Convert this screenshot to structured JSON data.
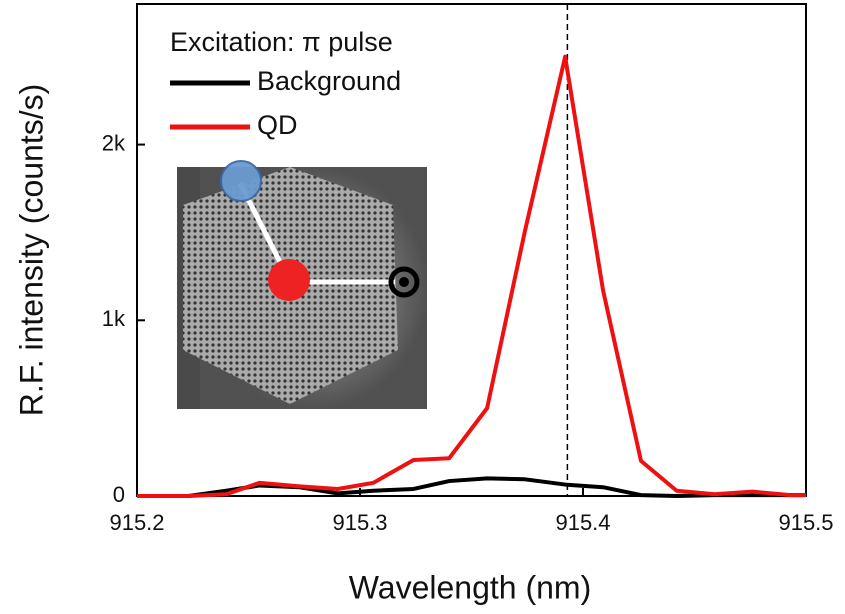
{
  "chart_data": {
    "type": "line",
    "xlabel": "Wavelength (nm)",
    "ylabel": "R.F. intensity (counts/s)",
    "legend_title": "Excitation: π pulse",
    "x": [
      915.2,
      915.223,
      915.24,
      915.255,
      915.273,
      915.29,
      915.306,
      915.324,
      915.34,
      915.357,
      915.374,
      915.392,
      915.409,
      915.426,
      915.442,
      915.459,
      915.476,
      915.493,
      915.5
    ],
    "series": [
      {
        "name": "Background",
        "color": "#000000",
        "values": [
          0,
          0,
          30,
          60,
          50,
          15,
          30,
          40,
          85,
          100,
          95,
          65,
          50,
          5,
          0,
          5,
          5,
          5,
          5
        ]
      },
      {
        "name": "QD",
        "color": "#ee1111",
        "values": [
          0,
          0,
          10,
          75,
          55,
          40,
          75,
          205,
          215,
          500,
          1510,
          2500,
          1170,
          200,
          30,
          10,
          25,
          5,
          5
        ]
      }
    ],
    "xlim": [
      915.2,
      915.5
    ],
    "xticks": [
      {
        "value": 915.2,
        "label": "915.2"
      },
      915.3,
      915.4,
      {
        "value": 915.5,
        "label": "915.5"
      }
    ],
    "ylim": [
      0,
      2800
    ],
    "yticks": [
      0,
      {
        "value": 1000,
        "label": "1k"
      },
      {
        "value": 2000,
        "label": "2k"
      }
    ],
    "vline": 915.393,
    "legend_position": "upper left"
  }
}
